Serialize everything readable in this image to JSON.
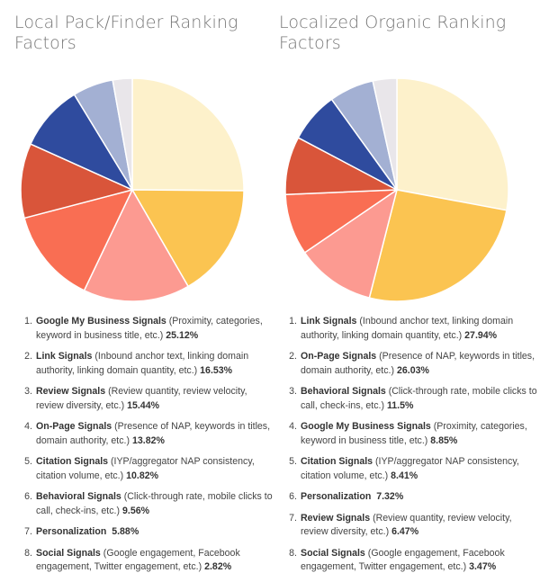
{
  "chart_data": [
    {
      "type": "pie",
      "title": "Local Pack/Finder Ranking Factors",
      "slices": [
        {
          "rank": "1.",
          "name": "Google My Business Signals",
          "description": "(Proximity, categories, keyword in business title, etc.)",
          "value": 25.12,
          "label": "25.12%",
          "color": "#fdf1cb"
        },
        {
          "rank": "2.",
          "name": "Link Signals",
          "description": "(Inbound anchor text, linking domain authority, linking domain quantity, etc.)",
          "value": 16.53,
          "label": "16.53%",
          "color": "#fbc451"
        },
        {
          "rank": "3.",
          "name": "Review Signals",
          "description": "(Review quantity, review velocity, review diversity, etc.)",
          "value": 15.44,
          "label": "15.44%",
          "color": "#fc9a91"
        },
        {
          "rank": "4.",
          "name": "On-Page Signals",
          "description": "(Presence of NAP, keywords in titles, domain authority, etc.)",
          "value": 13.82,
          "label": "13.82%",
          "color": "#f96e53"
        },
        {
          "rank": "5.",
          "name": "Citation Signals",
          "description": "(IYP/aggregator NAP consistency, citation volume, etc.)",
          "value": 10.82,
          "label": "10.82%",
          "color": "#d9553a"
        },
        {
          "rank": "6.",
          "name": "Behavioral Signals",
          "description": "(Click-through rate, mobile clicks to call, check-ins, etc.)",
          "value": 9.56,
          "label": "9.56%",
          "color": "#2f4b9e"
        },
        {
          "rank": "7.",
          "name": "Personalization",
          "description": "",
          "value": 5.88,
          "label": "5.88%",
          "color": "#a3b0d3"
        },
        {
          "rank": "8.",
          "name": "Social Signals",
          "description": "(Google engagement, Facebook engagement, Twitter engagement, etc.)",
          "value": 2.82,
          "label": "2.82%",
          "color": "#e9e6ea"
        }
      ]
    },
    {
      "type": "pie",
      "title": "Localized Organic Ranking Factors",
      "slices": [
        {
          "rank": "1.",
          "name": "Link Signals",
          "description": "(Inbound anchor text, linking domain authority, linking domain quantity, etc.)",
          "value": 27.94,
          "label": "27.94%",
          "color": "#fdf1cb"
        },
        {
          "rank": "2.",
          "name": "On-Page Signals",
          "description": "(Presence of NAP, keywords in titles, domain authority, etc.)",
          "value": 26.03,
          "label": "26.03%",
          "color": "#fbc451"
        },
        {
          "rank": "3.",
          "name": "Behavioral Signals",
          "description": "(Click-through rate, mobile clicks to call, check-ins, etc.)",
          "value": 11.5,
          "label": "11.5%",
          "color": "#fc9a91"
        },
        {
          "rank": "4.",
          "name": "Google My Business Signals",
          "description": "(Proximity, categories, keyword in business title, etc.)",
          "value": 8.85,
          "label": "8.85%",
          "color": "#f96e53"
        },
        {
          "rank": "5.",
          "name": "Citation Signals",
          "description": "(IYP/aggregator NAP consistency, citation volume, etc.)",
          "value": 8.41,
          "label": "8.41%",
          "color": "#d9553a"
        },
        {
          "rank": "6.",
          "name": "Personalization",
          "description": "",
          "value": 7.32,
          "label": "7.32%",
          "color": "#2f4b9e"
        },
        {
          "rank": "7.",
          "name": "Review Signals",
          "description": "(Review quantity, review velocity, review diversity, etc.)",
          "value": 6.47,
          "label": "6.47%",
          "color": "#a3b0d3"
        },
        {
          "rank": "8.",
          "name": "Social Signals",
          "description": "(Google engagement, Facebook engagement, Twitter engagement, etc.)",
          "value": 3.47,
          "label": "3.47%",
          "color": "#e9e6ea"
        }
      ]
    }
  ]
}
